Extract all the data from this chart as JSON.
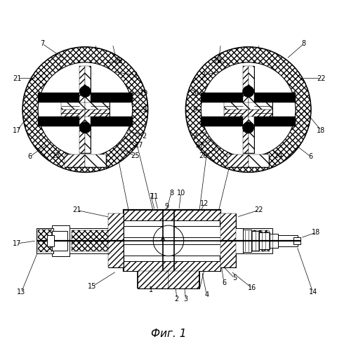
{
  "title": "Фиг. 1",
  "bg_color": "#ffffff",
  "figsize": [
    4.8,
    5.0
  ],
  "dpi": 100
}
